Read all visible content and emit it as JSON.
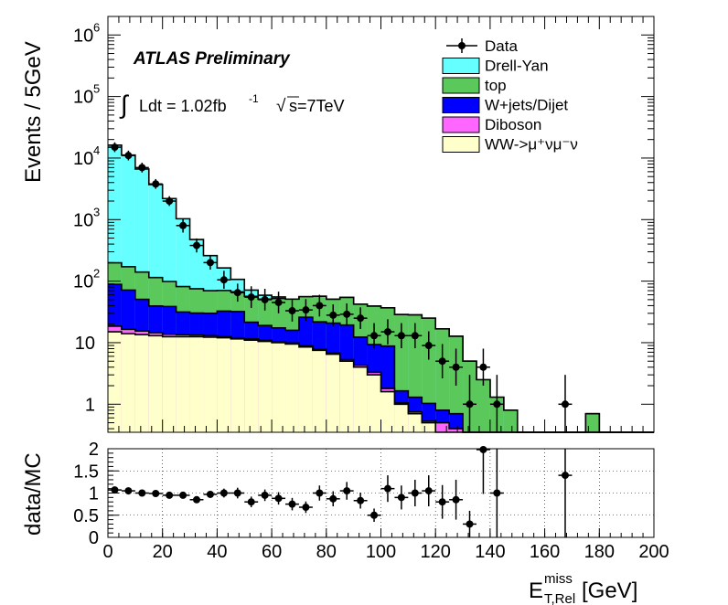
{
  "chart_data": [
    {
      "type": "stacked-histogram",
      "title": "ATLAS Preliminary",
      "subtitle": "∫ Ldt = 1.02fb⁻¹   √s=7TeV",
      "label_atlas": "ATLAS Preliminary",
      "label_ldt": "Ldt = 1.02fb",
      "label_ldt_exp": "-1",
      "label_sqrt_s": "s=7TeV",
      "label_integral": "∫",
      "label_sqrt": "√",
      "ylabel": "Events / 5GeV",
      "yscale": "log",
      "ylim": [
        0.35,
        2000000
      ],
      "xlim": [
        0,
        200
      ],
      "bin_width": 5,
      "y_ticks": [
        {
          "value": 1,
          "label": "1"
        },
        {
          "value": 10,
          "label": "10"
        },
        {
          "value": 100,
          "label": "10",
          "exp": "2"
        },
        {
          "value": 1000,
          "label": "10",
          "exp": "3"
        },
        {
          "value": 10000,
          "label": "10",
          "exp": "4"
        },
        {
          "value": 100000,
          "label": "10",
          "exp": "5"
        },
        {
          "value": 1000000,
          "label": "10",
          "exp": "6"
        }
      ],
      "legend": {
        "position": "top-right",
        "entries": [
          {
            "label": "Data",
            "kind": "marker"
          },
          {
            "label": "Drell-Yan",
            "kind": "fill",
            "color": "#66ffff"
          },
          {
            "label": "top",
            "kind": "fill",
            "color": "#5ac85a"
          },
          {
            "label": "W+jets/Dijet",
            "kind": "fill",
            "color": "#0000ff"
          },
          {
            "label": "Diboson",
            "kind": "fill",
            "color": "#ff66ff"
          },
          {
            "label": "WW->μ⁺νμ⁻ν",
            "kind": "fill",
            "color": "#ffffcc"
          }
        ]
      },
      "series_bottom_to_top": [
        {
          "name": "WW->μ⁺νμ⁻ν",
          "color": "#ffffcc",
          "values": [
            15,
            14,
            13.5,
            13,
            12.5,
            12.5,
            12.5,
            12.3,
            12,
            11.5,
            11,
            10.5,
            10,
            9.5,
            8.5,
            7.5,
            6.5,
            5,
            4,
            3,
            1.6,
            1,
            0.7,
            0.5,
            0.35,
            0.2,
            0,
            0,
            0,
            0,
            0,
            0,
            0,
            0,
            0,
            0,
            0,
            0,
            0,
            0
          ]
        },
        {
          "name": "Diboson",
          "color": "#ff66ff",
          "values": [
            3.5,
            2.5,
            2.0,
            1.5,
            1.2,
            1.0,
            0.8,
            0.7,
            0.6,
            0.5,
            0.5,
            0.5,
            0.4,
            0.4,
            0.4,
            0.3,
            0.3,
            0.3,
            0.3,
            0.3,
            0.2,
            0.05,
            0.05,
            0.03,
            0.15,
            0.2,
            0,
            0,
            0,
            0,
            0,
            0,
            0,
            0,
            0,
            0,
            0,
            0,
            0,
            0
          ]
        },
        {
          "name": "W+jets/Dijet",
          "color": "#0000ff",
          "values": [
            70,
            55,
            35,
            25,
            25,
            18,
            17,
            17,
            20,
            20,
            10,
            8,
            7,
            6,
            17,
            14,
            14,
            14,
            8,
            6,
            7,
            0.6,
            0.55,
            0.5,
            0.3,
            0.3,
            0,
            0,
            0,
            0,
            0,
            0,
            0,
            0,
            0,
            0,
            0,
            0,
            0,
            0
          ]
        },
        {
          "name": "top",
          "color": "#5ac85a",
          "values": [
            110,
            100,
            90,
            75,
            60,
            50,
            45,
            40,
            38,
            35,
            35,
            32,
            35,
            35,
            30,
            35,
            30,
            35,
            30,
            30,
            28,
            27,
            27,
            24,
            16,
            12,
            5,
            2.5,
            1.3,
            0.8,
            0,
            0,
            0,
            0,
            0.3,
            0.7,
            0,
            0.3,
            0,
            0
          ]
        },
        {
          "name": "Drell-Yan",
          "color": "#66ffff",
          "values": [
            16000,
            11000,
            6500,
            3600,
            2100,
            950,
            400,
            190,
            93,
            40,
            15,
            8,
            3,
            0,
            0,
            0,
            0,
            0,
            0,
            0,
            0,
            0,
            0,
            0,
            0,
            0,
            0,
            0,
            0,
            0,
            0,
            0,
            0,
            0,
            0,
            0,
            0,
            0,
            0,
            0
          ]
        }
      ],
      "data_points": [
        {
          "x": 2.5,
          "y": 15000,
          "err": 1.2
        },
        {
          "x": 7.5,
          "y": 11000,
          "err": 1.2
        },
        {
          "x": 12.5,
          "y": 7000,
          "err": 1.2
        },
        {
          "x": 17.5,
          "y": 3800,
          "err": 1.2
        },
        {
          "x": 22.5,
          "y": 2000,
          "err": 1.2
        },
        {
          "x": 27.5,
          "y": 800,
          "err": 1.3
        },
        {
          "x": 32.5,
          "y": 380,
          "err": 1.3
        },
        {
          "x": 37.5,
          "y": 200,
          "err": 1.3
        },
        {
          "x": 42.5,
          "y": 105,
          "err": 1.4
        },
        {
          "x": 47.5,
          "y": 65,
          "err": 1.4
        },
        {
          "x": 52.5,
          "y": 55,
          "err": 1.5
        },
        {
          "x": 57.5,
          "y": 50,
          "err": 1.5
        },
        {
          "x": 62.5,
          "y": 45,
          "err": 1.5
        },
        {
          "x": 67.5,
          "y": 33,
          "err": 1.5
        },
        {
          "x": 72.5,
          "y": 34,
          "err": 1.5
        },
        {
          "x": 77.5,
          "y": 40,
          "err": 1.5
        },
        {
          "x": 82.5,
          "y": 28,
          "err": 1.5
        },
        {
          "x": 87.5,
          "y": 29,
          "err": 1.5
        },
        {
          "x": 92.5,
          "y": 25,
          "err": 1.5
        },
        {
          "x": 97.5,
          "y": 13,
          "err": 1.6
        },
        {
          "x": 102.5,
          "y": 15,
          "err": 1.6
        },
        {
          "x": 107.5,
          "y": 13,
          "err": 1.6
        },
        {
          "x": 112.5,
          "y": 13,
          "err": 1.6
        },
        {
          "x": 117.5,
          "y": 9,
          "err": 1.7
        },
        {
          "x": 122.5,
          "y": 5,
          "err": 1.9
        },
        {
          "x": 127.5,
          "y": 4,
          "err": 2.0
        },
        {
          "x": 132.5,
          "y": 1,
          "err": 3
        },
        {
          "x": 137.5,
          "y": 4,
          "err": 2.0
        },
        {
          "x": 142.5,
          "y": 1,
          "err": 3
        },
        {
          "x": 167.5,
          "y": 1,
          "err": 3
        }
      ]
    },
    {
      "type": "scatter",
      "ylabel": "data/MC",
      "xlabel": "E",
      "xlabel_sup": "miss",
      "xlabel_sub": "T,Rel",
      "xlabel_unit": "[GeV]",
      "xlim": [
        0,
        200
      ],
      "ylim": [
        0,
        2
      ],
      "grid": true,
      "x_ticks": [
        {
          "value": 0,
          "label": "0"
        },
        {
          "value": 20,
          "label": "20"
        },
        {
          "value": 40,
          "label": "40"
        },
        {
          "value": 60,
          "label": "60"
        },
        {
          "value": 80,
          "label": "80"
        },
        {
          "value": 100,
          "label": "100"
        },
        {
          "value": 120,
          "label": "120"
        },
        {
          "value": 140,
          "label": "140"
        },
        {
          "value": 160,
          "label": "160"
        },
        {
          "value": 180,
          "label": "180"
        },
        {
          "value": 200,
          "label": "200"
        }
      ],
      "y_ticks": [
        {
          "value": 0,
          "label": "0"
        },
        {
          "value": 0.5,
          "label": "0.5"
        },
        {
          "value": 1,
          "label": "1"
        },
        {
          "value": 1.5,
          "label": "1.5"
        },
        {
          "value": 2,
          "label": "2"
        }
      ],
      "points": [
        {
          "x": 2.5,
          "y": 1.07,
          "err": 0.02
        },
        {
          "x": 7.5,
          "y": 1.05,
          "err": 0.02
        },
        {
          "x": 12.5,
          "y": 1.0,
          "err": 0.02
        },
        {
          "x": 17.5,
          "y": 0.99,
          "err": 0.02
        },
        {
          "x": 22.5,
          "y": 0.95,
          "err": 0.03
        },
        {
          "x": 27.5,
          "y": 0.95,
          "err": 0.04
        },
        {
          "x": 32.5,
          "y": 0.85,
          "err": 0.05
        },
        {
          "x": 37.5,
          "y": 0.97,
          "err": 0.07
        },
        {
          "x": 42.5,
          "y": 1.0,
          "err": 0.1
        },
        {
          "x": 47.5,
          "y": 1.0,
          "err": 0.12
        },
        {
          "x": 52.5,
          "y": 0.8,
          "err": 0.12
        },
        {
          "x": 57.5,
          "y": 0.95,
          "err": 0.13
        },
        {
          "x": 62.5,
          "y": 0.88,
          "err": 0.14
        },
        {
          "x": 67.5,
          "y": 0.75,
          "err": 0.14
        },
        {
          "x": 72.5,
          "y": 0.68,
          "err": 0.13
        },
        {
          "x": 77.5,
          "y": 1.0,
          "err": 0.17
        },
        {
          "x": 82.5,
          "y": 0.87,
          "err": 0.17
        },
        {
          "x": 87.5,
          "y": 1.05,
          "err": 0.2
        },
        {
          "x": 92.5,
          "y": 0.83,
          "err": 0.18
        },
        {
          "x": 97.5,
          "y": 0.5,
          "err": 0.15
        },
        {
          "x": 102.5,
          "y": 1.1,
          "err": 0.3
        },
        {
          "x": 107.5,
          "y": 0.9,
          "err": 0.27
        },
        {
          "x": 112.5,
          "y": 1.0,
          "err": 0.3
        },
        {
          "x": 117.5,
          "y": 1.05,
          "err": 0.35
        },
        {
          "x": 122.5,
          "y": 0.8,
          "err": 0.38
        },
        {
          "x": 127.5,
          "y": 0.85,
          "err": 0.45
        },
        {
          "x": 132.5,
          "y": 0.3,
          "err": 0.3
        },
        {
          "x": 137.5,
          "y": 1.98,
          "err": 1.0
        },
        {
          "x": 142.5,
          "y": 1.0,
          "err": 1.0
        },
        {
          "x": 167.5,
          "y": 1.4,
          "err": 1.4
        }
      ]
    }
  ]
}
